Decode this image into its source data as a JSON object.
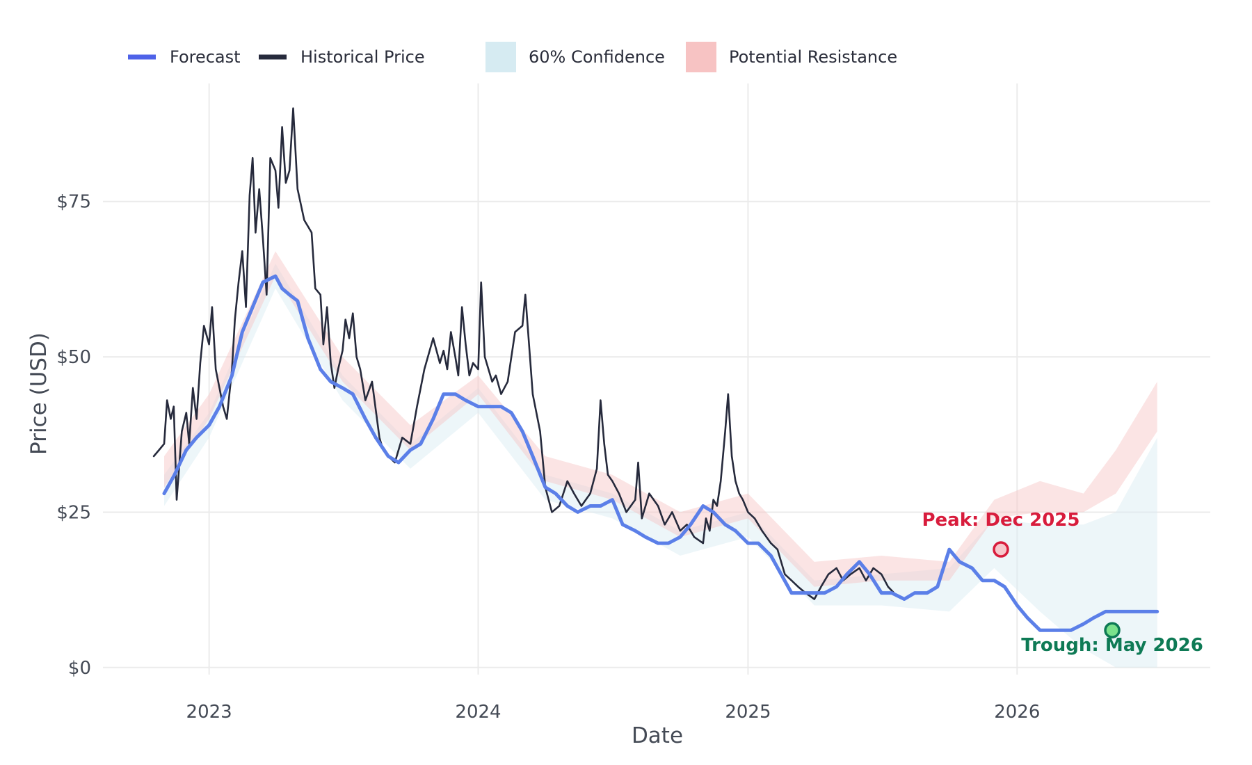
{
  "chart_data": {
    "type": "line",
    "title": "",
    "xlabel": "Date",
    "ylabel": "Price (USD)",
    "x_ticks": [
      "2023",
      "2024",
      "2025",
      "2026"
    ],
    "y_ticks": [
      "$0",
      "$25",
      "$50",
      "$75"
    ],
    "y_tick_values": [
      0,
      25,
      50,
      75
    ],
    "xlim": [
      "2022-08-10",
      "2026-09-20"
    ],
    "ylim": [
      -4.5,
      94
    ],
    "grid": true,
    "legend_position": "top",
    "colors": {
      "forecast": "#5b7fe8",
      "historical": "#262a3c",
      "confidence": "#d6ebf2",
      "resistance": "#f7c3c3",
      "peak": "#d81c3c",
      "trough": "#0e7a55"
    },
    "legend": [
      {
        "label": "Forecast",
        "kind": "line",
        "color": "#4e62e8"
      },
      {
        "label": "Historical Price",
        "kind": "line",
        "color": "#262a3c"
      },
      {
        "label": "60% Confidence",
        "kind": "box",
        "color": "#d6ebf2"
      },
      {
        "label": "Potential Resistance",
        "kind": "box",
        "color": "#f7c3c3"
      }
    ],
    "series": [
      {
        "name": "Historical Price",
        "x": [
          "2022-10-18",
          "2022-10-25",
          "2022-11-01",
          "2022-11-05",
          "2022-11-10",
          "2022-11-14",
          "2022-11-18",
          "2022-11-25",
          "2022-12-01",
          "2022-12-05",
          "2022-12-10",
          "2022-12-15",
          "2022-12-20",
          "2022-12-25",
          "2023-01-01",
          "2023-01-05",
          "2023-01-10",
          "2023-01-15",
          "2023-01-20",
          "2023-01-25",
          "2023-02-01",
          "2023-02-05",
          "2023-02-10",
          "2023-02-15",
          "2023-02-20",
          "2023-02-25",
          "2023-03-01",
          "2023-03-05",
          "2023-03-10",
          "2023-03-15",
          "2023-03-20",
          "2023-03-25",
          "2023-04-01",
          "2023-04-05",
          "2023-04-10",
          "2023-04-15",
          "2023-04-20",
          "2023-04-25",
          "2023-05-01",
          "2023-05-10",
          "2023-05-20",
          "2023-05-25",
          "2023-06-01",
          "2023-06-05",
          "2023-06-10",
          "2023-06-15",
          "2023-06-20",
          "2023-06-25",
          "2023-07-01",
          "2023-07-05",
          "2023-07-10",
          "2023-07-15",
          "2023-07-20",
          "2023-07-25",
          "2023-08-01",
          "2023-08-10",
          "2023-08-20",
          "2023-08-25",
          "2023-09-01",
          "2023-09-10",
          "2023-09-20",
          "2023-10-01",
          "2023-10-10",
          "2023-10-20",
          "2023-11-01",
          "2023-11-10",
          "2023-11-15",
          "2023-11-20",
          "2023-11-25",
          "2023-12-01",
          "2023-12-05",
          "2023-12-10",
          "2023-12-15",
          "2023-12-20",
          "2023-12-25",
          "2024-01-01",
          "2024-01-05",
          "2024-01-10",
          "2024-01-15",
          "2024-01-20",
          "2024-01-25",
          "2024-02-01",
          "2024-02-10",
          "2024-02-20",
          "2024-03-01",
          "2024-03-05",
          "2024-03-10",
          "2024-03-15",
          "2024-03-20",
          "2024-03-25",
          "2024-04-01",
          "2024-04-10",
          "2024-04-20",
          "2024-05-01",
          "2024-05-10",
          "2024-05-20",
          "2024-06-01",
          "2024-06-10",
          "2024-06-15",
          "2024-06-20",
          "2024-06-25",
          "2024-07-01",
          "2024-07-10",
          "2024-07-20",
          "2024-08-01",
          "2024-08-05",
          "2024-08-10",
          "2024-08-20",
          "2024-09-01",
          "2024-09-10",
          "2024-09-20",
          "2024-10-01",
          "2024-10-10",
          "2024-10-20",
          "2024-11-01",
          "2024-11-05",
          "2024-11-10",
          "2024-11-15",
          "2024-11-20",
          "2024-11-25",
          "2024-12-01",
          "2024-12-05",
          "2024-12-10",
          "2024-12-15",
          "2024-12-20",
          "2024-12-25",
          "2025-01-01",
          "2025-01-10",
          "2025-01-20",
          "2025-02-01",
          "2025-02-10",
          "2025-02-20",
          "2025-03-01",
          "2025-03-10",
          "2025-03-20",
          "2025-04-01",
          "2025-04-10",
          "2025-04-20",
          "2025-05-01",
          "2025-05-10",
          "2025-05-20",
          "2025-06-01",
          "2025-06-10",
          "2025-06-20",
          "2025-07-01",
          "2025-07-10",
          "2025-07-18"
        ],
        "y": [
          34,
          35,
          36,
          43,
          40,
          42,
          27,
          38,
          41,
          36,
          45,
          40,
          49,
          55,
          52,
          58,
          48,
          45,
          42,
          40,
          48,
          56,
          62,
          67,
          58,
          76,
          82,
          70,
          77,
          69,
          60,
          82,
          80,
          74,
          87,
          78,
          80,
          90,
          77,
          72,
          70,
          61,
          60,
          52,
          58,
          49,
          45,
          48,
          51,
          56,
          53,
          57,
          50,
          48,
          43,
          46,
          37,
          35,
          34,
          33,
          37,
          36,
          42,
          48,
          53,
          49,
          51,
          48,
          54,
          50,
          47,
          58,
          52,
          47,
          49,
          48,
          62,
          50,
          48,
          46,
          47,
          44,
          46,
          54,
          55,
          60,
          52,
          44,
          41,
          38,
          29,
          25,
          26,
          30,
          28,
          26,
          28,
          32,
          43,
          36,
          31,
          30,
          28,
          25,
          27,
          33,
          24,
          28,
          26,
          23,
          25,
          22,
          23,
          21,
          20,
          24,
          22,
          27,
          26,
          30,
          38,
          44,
          34,
          30,
          28,
          27,
          25,
          24,
          22,
          20,
          19,
          15,
          14,
          13,
          12,
          11,
          13,
          15,
          16,
          14,
          15,
          16,
          14,
          16,
          15,
          13,
          12
        ]
      },
      {
        "name": "Forecast",
        "x": [
          "2022-11-01",
          "2022-11-15",
          "2022-12-01",
          "2022-12-15",
          "2023-01-01",
          "2023-01-15",
          "2023-02-01",
          "2023-02-15",
          "2023-03-01",
          "2023-03-15",
          "2023-04-01",
          "2023-04-10",
          "2023-04-20",
          "2023-05-01",
          "2023-05-15",
          "2023-06-01",
          "2023-06-15",
          "2023-07-01",
          "2023-07-15",
          "2023-08-01",
          "2023-08-15",
          "2023-09-01",
          "2023-09-15",
          "2023-10-01",
          "2023-10-15",
          "2023-11-01",
          "2023-11-15",
          "2023-12-01",
          "2023-12-15",
          "2024-01-01",
          "2024-01-15",
          "2024-02-01",
          "2024-02-15",
          "2024-03-01",
          "2024-03-15",
          "2024-04-01",
          "2024-04-15",
          "2024-05-01",
          "2024-05-15",
          "2024-06-01",
          "2024-06-15",
          "2024-07-01",
          "2024-07-15",
          "2024-08-01",
          "2024-08-15",
          "2024-09-01",
          "2024-09-15",
          "2024-10-01",
          "2024-10-15",
          "2024-11-01",
          "2024-11-15",
          "2024-12-01",
          "2024-12-15",
          "2025-01-01",
          "2025-01-15",
          "2025-02-01",
          "2025-02-15",
          "2025-03-01",
          "2025-03-15",
          "2025-04-01",
          "2025-04-15",
          "2025-05-01",
          "2025-05-15",
          "2025-06-01",
          "2025-06-15",
          "2025-07-01",
          "2025-07-15",
          "2025-08-01",
          "2025-08-15",
          "2025-09-01",
          "2025-09-15",
          "2025-10-01",
          "2025-10-15",
          "2025-11-01",
          "2025-11-15",
          "2025-12-01",
          "2025-12-15",
          "2026-01-01",
          "2026-01-15",
          "2026-02-01",
          "2026-02-15",
          "2026-03-01",
          "2026-03-15",
          "2026-04-01",
          "2026-04-15",
          "2026-05-01",
          "2026-05-15",
          "2026-06-01",
          "2026-06-15",
          "2026-07-01",
          "2026-07-10"
        ],
        "y": [
          28,
          31,
          35,
          37,
          39,
          42,
          47,
          54,
          58,
          62,
          63,
          61,
          60,
          59,
          53,
          48,
          46,
          45,
          44,
          40,
          37,
          34,
          33,
          35,
          36,
          40,
          44,
          44,
          43,
          42,
          42,
          42,
          41,
          38,
          34,
          29,
          28,
          26,
          25,
          26,
          26,
          27,
          23,
          22,
          21,
          20,
          20,
          21,
          23,
          26,
          25,
          23,
          22,
          20,
          20,
          18,
          15,
          12,
          12,
          12,
          12,
          13,
          15,
          17,
          15,
          12,
          12,
          11,
          12,
          12,
          13,
          19,
          17,
          16,
          14,
          14,
          13,
          10,
          8,
          6,
          6,
          6,
          6,
          7,
          8,
          9,
          9,
          9,
          9,
          9,
          9
        ]
      }
    ],
    "bands": [
      {
        "name": "60% Confidence",
        "x": [
          "2022-11-01",
          "2023-01-01",
          "2023-04-01",
          "2023-07-01",
          "2023-10-01",
          "2024-01-01",
          "2024-04-01",
          "2024-07-01",
          "2024-10-01",
          "2025-01-01",
          "2025-04-01",
          "2025-07-01",
          "2025-10-01",
          "2025-12-01",
          "2026-02-01",
          "2026-04-01",
          "2026-05-15",
          "2026-07-10"
        ],
        "lower": [
          26,
          37,
          61,
          43,
          32,
          41,
          27,
          24,
          18,
          21,
          10,
          10,
          9,
          16,
          9,
          3,
          0,
          0
        ],
        "upper": [
          31,
          41,
          65,
          47,
          36,
          45,
          31,
          28,
          22,
          25,
          14,
          15,
          16,
          24,
          23,
          23,
          25,
          37
        ]
      },
      {
        "name": "Potential Resistance",
        "x": [
          "2022-11-01",
          "2023-01-01",
          "2023-04-01",
          "2023-07-01",
          "2023-10-01",
          "2024-01-01",
          "2024-04-01",
          "2024-07-01",
          "2024-10-01",
          "2025-01-01",
          "2025-04-01",
          "2025-07-01",
          "2025-10-01",
          "2025-12-01",
          "2026-02-01",
          "2026-04-01",
          "2026-05-15",
          "2026-07-10"
        ],
        "lower": [
          29,
          40,
          63,
          46,
          35,
          44,
          30,
          27,
          21,
          24,
          13,
          14,
          14,
          24,
          25,
          25,
          28,
          38
        ],
        "upper": [
          34,
          44,
          67,
          50,
          39,
          47,
          34,
          31,
          25,
          28,
          17,
          18,
          17,
          27,
          30,
          28,
          35,
          46
        ]
      }
    ],
    "annotations": [
      {
        "label": "Peak: Dec 2025",
        "x": "2025-12-10",
        "y": 19,
        "color": "#d81c3c",
        "marker_fill": "#f6c8cc"
      },
      {
        "label": "Trough: May 2026",
        "x": "2026-05-10",
        "y": 6,
        "color": "#0e7a55",
        "marker_fill": "#7be28c"
      }
    ]
  }
}
